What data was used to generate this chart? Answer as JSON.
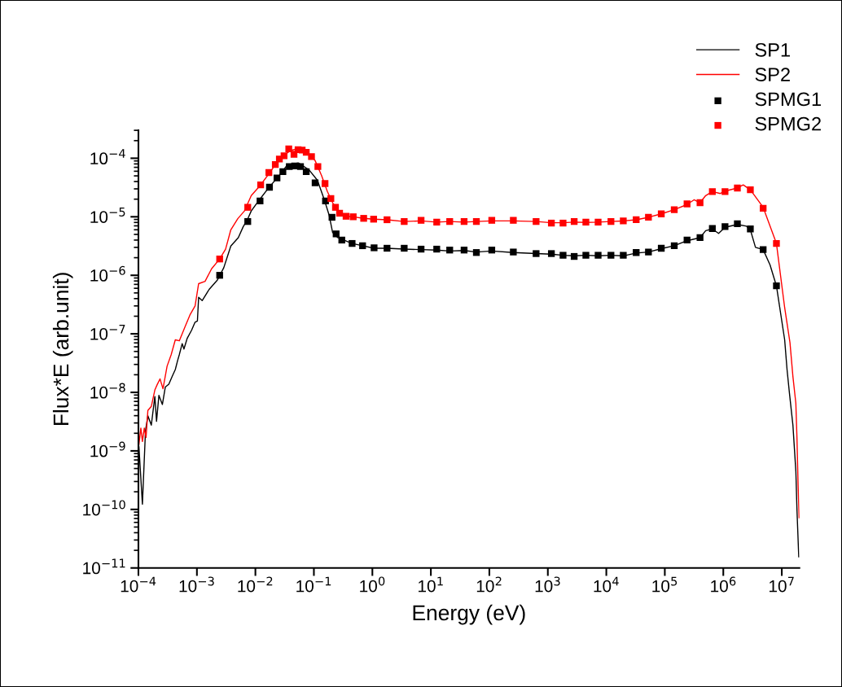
{
  "chart_data": {
    "type": "line",
    "xlabel": "Energy (eV)",
    "ylabel": "Flux*E (arb.unit)",
    "log": "xy",
    "grid": false,
    "legend": "top right",
    "xlim": [
      0.0001,
      20000000.0
    ],
    "ylim": [
      1e-11,
      0.0003
    ],
    "xticks": [
      {
        "value": 0.0001,
        "label": "10$^{−4}$"
      },
      {
        "value": 0.001,
        "label": "10$^{−3}$"
      },
      {
        "value": 0.01,
        "label": "10$^{−2}$"
      },
      {
        "value": 0.1,
        "label": "10$^{−1}$"
      },
      {
        "value": 1,
        "label": "10$^{0}$"
      },
      {
        "value": 10,
        "label": "10$^{1}$"
      },
      {
        "value": 100,
        "label": "10$^{2}$"
      },
      {
        "value": 1000,
        "label": "10$^{3}$"
      },
      {
        "value": 10000,
        "label": "10$^{4}$"
      },
      {
        "value": 100000,
        "label": "10$^{5}$"
      },
      {
        "value": 1000000,
        "label": "10$^{6}$"
      },
      {
        "value": 10000000,
        "label": "10$^{7}$"
      }
    ],
    "yticks": [
      {
        "value": 1e-11,
        "label": "10$^{−11}$"
      },
      {
        "value": 1e-10,
        "label": "10$^{−10}$"
      },
      {
        "value": 1e-09,
        "label": "10$^{−9}$"
      },
      {
        "value": 1e-08,
        "label": "10$^{−8}$"
      },
      {
        "value": 1e-07,
        "label": "10$^{−7}$"
      },
      {
        "value": 1e-06,
        "label": "10$^{−6}$"
      },
      {
        "value": 1e-05,
        "label": "10$^{−5}$"
      },
      {
        "value": 0.0001,
        "label": "10$^{−4}$"
      }
    ],
    "series": [
      {
        "name": "SP1",
        "color": "#000000",
        "marker": "none",
        "line_style": "solid",
        "x": [
          0.000102,
          0.000117,
          0.000132,
          0.000145,
          0.000166,
          0.000191,
          0.000204,
          0.000224,
          0.000257,
          0.000288,
          0.000331,
          0.00038,
          0.000427,
          0.000468,
          0.0005,
          0.00056,
          0.0006,
          0.00068,
          0.00081,
          0.00093,
          0.00102,
          0.00107,
          0.00123,
          0.00162,
          0.00224,
          0.00288,
          0.0038,
          0.0051,
          0.0062,
          0.0072,
          0.0085,
          0.0117,
          0.017,
          0.0257,
          0.0355,
          0.055,
          0.083,
          0.115,
          0.151,
          0.182,
          0.209,
          0.257,
          0.45,
          0.68,
          1.07,
          1.78,
          3.5,
          6.8,
          12.6,
          21,
          37,
          60,
          110,
          257,
          630,
          1150,
          1820,
          2820,
          4470,
          7240,
          12000.0,
          19500.0,
          32400.0,
          52500.0,
          87000.0,
          145000.0,
          240000.0,
          400000.0,
          500000.0,
          650000.0,
          830000.0,
          1070000.0,
          1740000.0,
          2500000.0,
          2900000.0,
          3550000.0,
          4800000.0,
          6300000.0,
          8100000.0,
          11200000.0,
          12300000.0,
          13500000.0,
          15500000.0,
          17400000.0,
          18200000.0,
          19500000.0
        ],
        "values": [
          1.17e-09,
          1.23e-10,
          2.19e-09,
          3.98e-09,
          2.75e-09,
          8.5e-09,
          3.2e-09,
          8.9e-09,
          6.2e-09,
          1.23e-08,
          1.38e-08,
          1.9e-08,
          2.45e-08,
          3.5e-08,
          4.4e-08,
          6.8e-08,
          5.5e-08,
          8.3e-08,
          1.15e-07,
          1.58e-07,
          1.66e-07,
          4.2e-07,
          3.7e-07,
          5.75e-07,
          8.3e-07,
          1.35e-06,
          3.16e-06,
          4.4e-06,
          6.8e-06,
          8.7e-06,
          1.26e-05,
          1.95e-05,
          3.16e-05,
          5.1e-05,
          7.8e-05,
          8.3e-05,
          6.3e-05,
          4.2e-05,
          1.95e-05,
          1.07e-05,
          5.4e-06,
          4.4e-06,
          3.5e-06,
          3.2e-06,
          2.9e-06,
          2.9e-06,
          2.8e-06,
          2.75e-06,
          2.7e-06,
          2.6e-06,
          2.65e-06,
          2.5e-06,
          2.6e-06,
          2.45e-06,
          2.35e-06,
          2.3e-06,
          2.2e-06,
          2.15e-06,
          2.2e-06,
          2.15e-06,
          2.2e-06,
          2.15e-06,
          2.4e-06,
          2.5e-06,
          2.85e-06,
          3.2e-06,
          3.9e-06,
          4.4e-06,
          5.8e-06,
          6.2e-06,
          5.2e-06,
          6.6e-06,
          7.4e-06,
          6.9e-06,
          6e-06,
          3e-06,
          2.75e-06,
          1.5e-06,
          6.6e-07,
          7.9e-08,
          2.45e-08,
          9.8e-09,
          2.75e-09,
          4.5e-10,
          9.5e-11,
          1.55e-11
        ]
      },
      {
        "name": "SP2",
        "color": "#ff0000",
        "marker": "none",
        "line_style": "solid",
        "x": [
          0.000102,
          0.00011,
          0.000117,
          0.000126,
          0.000135,
          0.000145,
          0.000166,
          0.000191,
          0.000209,
          0.000234,
          0.000263,
          0.000309,
          0.000363,
          0.000427,
          0.0005,
          0.00062,
          0.00076,
          0.00093,
          0.00107,
          0.00138,
          0.00178,
          0.00245,
          0.00309,
          0.0038,
          0.005,
          0.0065,
          0.0085,
          0.0117,
          0.017,
          0.0257,
          0.04,
          0.055,
          0.076,
          0.105,
          0.135,
          0.17,
          0.209,
          0.275,
          0.355,
          0.47,
          0.71,
          1.05,
          1.78,
          3.5,
          6.8,
          12.6,
          21,
          37,
          60,
          110,
          257,
          630,
          1150,
          1820,
          2820,
          4470,
          7240,
          12000.0,
          19500.0,
          32400.0,
          52500.0,
          87000.0,
          145000.0,
          240000.0,
          316000.0,
          400000.0,
          500000.0,
          650000.0,
          890000.0,
          1070000.0,
          1740000.0,
          2190000.0,
          2900000.0,
          4800000.0,
          8100000.0,
          11200000.0,
          13800000.0,
          15500000.0,
          17400000.0,
          18200000.0,
          19000000.0,
          19800000.0
        ],
        "values": [
          1.29e-09,
          2.45e-09,
          1.45e-09,
          2.45e-09,
          1.7e-09,
          4.9e-09,
          5.75e-09,
          1.1e-08,
          1.35e-08,
          1.7e-08,
          1.15e-08,
          2.8e-08,
          4.4e-08,
          7.9e-08,
          7.6e-08,
          1.29e-07,
          2.1e-07,
          3e-07,
          7.2e-07,
          7.9e-07,
          1.29e-06,
          1.9e-06,
          2.8e-06,
          6e-06,
          9.3e-06,
          1.26e-05,
          2.3e-05,
          3.3e-05,
          5.4e-05,
          9.8e-05,
          0.000135,
          0.000148,
          0.000126,
          9.1e-05,
          5.1e-05,
          2.7e-05,
          1.74e-05,
          1.15e-05,
          1.02e-05,
          1e-05,
          9.4e-06,
          9.1e-06,
          8.9e-06,
          8.3e-06,
          8.5e-06,
          8.1e-06,
          8.3e-06,
          8.1e-06,
          8.3e-06,
          8.5e-06,
          8.5e-06,
          8.3e-06,
          7.9e-06,
          7.9e-06,
          8.1e-06,
          8e-06,
          8.1e-06,
          8.3e-06,
          8.5e-06,
          8.9e-06,
          9.8e-06,
          1.12e-05,
          1.32e-05,
          1.62e-05,
          1.95e-05,
          1.74e-05,
          2.3e-05,
          2.7e-05,
          2.5e-05,
          2.75e-05,
          3.1e-05,
          3.5e-05,
          2.9e-05,
          1.45e-05,
          3.5e-06,
          2.8e-07,
          7.1e-08,
          1.86e-08,
          6.5e-09,
          1.58e-09,
          2.6e-10,
          7.2e-11
        ]
      },
      {
        "name": "SPMG1",
        "type": "scatter",
        "color": "#000000",
        "marker": "square",
        "x": [
          0.00245,
          0.0074,
          0.012,
          0.0174,
          0.0234,
          0.0295,
          0.038,
          0.047,
          0.059,
          0.074,
          0.105,
          0.158,
          0.204,
          0.24,
          0.3,
          0.45,
          0.68,
          1.07,
          1.78,
          3.5,
          6.8,
          12.6,
          21,
          37,
          60,
          110,
          257,
          630,
          1150,
          1820,
          2820,
          4470,
          7240,
          12000.0,
          19500.0,
          32400.0,
          52500.0,
          87000.0,
          145000.0,
          240000.0,
          400000.0,
          650000.0,
          1070000.0,
          1740000.0,
          2900000.0,
          4800000.0,
          8100000.0
        ],
        "values": [
          1e-06,
          8.3e-06,
          1.86e-05,
          3.2e-05,
          4.6e-05,
          5.9e-05,
          7.2e-05,
          7.4e-05,
          7.2e-05,
          5.9e-05,
          3.8e-05,
          1.86e-05,
          9.8e-06,
          5.1e-06,
          4e-06,
          3.5e-06,
          3.2e-06,
          2.95e-06,
          2.9e-06,
          2.9e-06,
          2.8e-06,
          2.8e-06,
          2.7e-06,
          2.7e-06,
          2.45e-06,
          2.7e-06,
          2.5e-06,
          2.35e-06,
          2.35e-06,
          2.2e-06,
          2.1e-06,
          2.2e-06,
          2.2e-06,
          2.2e-06,
          2.2e-06,
          2.45e-06,
          2.5e-06,
          2.9e-06,
          3.2e-06,
          4e-06,
          4.4e-06,
          6.3e-06,
          6.8e-06,
          7.6e-06,
          6.2e-06,
          2.75e-06,
          6.6e-07
        ]
      },
      {
        "name": "SPMG2",
        "type": "scatter",
        "color": "#ff0000",
        "marker": "square",
        "x": [
          0.00245,
          0.0074,
          0.0123,
          0.017,
          0.0219,
          0.0257,
          0.0309,
          0.0372,
          0.0457,
          0.0537,
          0.063,
          0.074,
          0.091,
          0.117,
          0.155,
          0.195,
          0.234,
          0.275,
          0.355,
          0.47,
          0.71,
          1.05,
          1.78,
          3.5,
          6.8,
          12.6,
          21,
          37,
          60,
          110,
          257,
          630,
          1150,
          1820,
          2820,
          4470,
          7240,
          12000.0,
          19500.0,
          32400.0,
          52500.0,
          87000.0,
          145000.0,
          240000.0,
          400000.0,
          650000.0,
          1070000.0,
          1740000.0,
          2900000.0,
          4800000.0,
          8100000.0
        ],
        "values": [
          1.9e-06,
          1.45e-05,
          3.5e-05,
          5.7e-05,
          7.8e-05,
          9.7e-05,
          0.00011,
          0.000145,
          0.000117,
          0.00014,
          0.000138,
          0.000126,
          0.000107,
          7.2e-05,
          3.7e-05,
          2.05e-05,
          1.45e-05,
          1.15e-05,
          1.02e-05,
          1e-05,
          9.4e-06,
          9.1e-06,
          8.9e-06,
          8.3e-06,
          8.7e-06,
          8.1e-06,
          8.3e-06,
          8.3e-06,
          8.3e-06,
          8.7e-06,
          8.7e-06,
          8.3e-06,
          7.8e-06,
          7.8e-06,
          8.3e-06,
          8.1e-06,
          8.1e-06,
          8.3e-06,
          8.5e-06,
          8.9e-06,
          9.8e-06,
          1.12e-05,
          1.32e-05,
          1.66e-05,
          1.74e-05,
          2.7e-05,
          2.7e-05,
          3.1e-05,
          2.9e-05,
          1.4e-05,
          3.5e-06
        ]
      }
    ]
  }
}
